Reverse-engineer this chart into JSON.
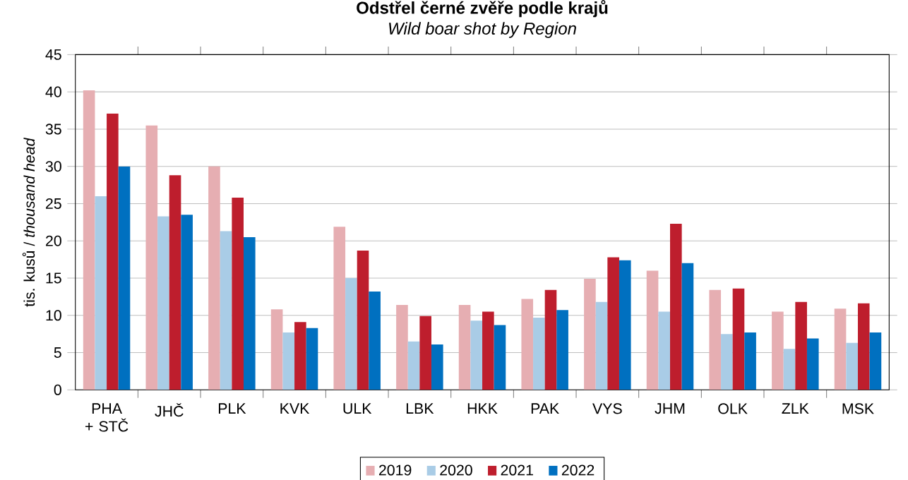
{
  "chart_data": {
    "type": "bar",
    "title": "Odstřel černé zvěře podle krajů",
    "subtitle": "Wild boar shot by Region",
    "ylabel": "tis. kusů / *thousand head*",
    "categories": [
      "PHA + STČ",
      "JHČ",
      "PLK",
      "KVK",
      "ULK",
      "LBK",
      "HKK",
      "PAK",
      "VYS",
      "JHM",
      "OLK",
      "ZLK",
      "MSK"
    ],
    "series": [
      {
        "name": "2019",
        "color": "#e6aeb2",
        "values": [
          40.2,
          35.5,
          30.0,
          10.8,
          21.9,
          11.4,
          11.4,
          12.2,
          14.9,
          16.0,
          13.4,
          10.5,
          10.9
        ]
      },
      {
        "name": "2020",
        "color": "#a9cce6",
        "values": [
          26.0,
          23.3,
          21.3,
          7.7,
          15.0,
          6.5,
          9.3,
          9.7,
          11.8,
          10.5,
          7.5,
          5.5,
          6.3
        ]
      },
      {
        "name": "2021",
        "color": "#be1e2d",
        "values": [
          37.1,
          28.8,
          25.8,
          9.1,
          18.7,
          9.9,
          10.5,
          13.4,
          17.8,
          22.3,
          13.6,
          11.8,
          11.6
        ]
      },
      {
        "name": "2022",
        "color": "#0070c0",
        "values": [
          30.0,
          23.5,
          20.5,
          8.3,
          13.2,
          6.1,
          8.7,
          10.7,
          17.4,
          17.0,
          7.7,
          6.9,
          7.7
        ]
      }
    ],
    "ylim": [
      0,
      45
    ],
    "yticks": [
      0,
      5,
      10,
      15,
      20,
      25,
      30,
      35,
      40,
      45
    ],
    "grid": "y",
    "legend": "bottom"
  }
}
